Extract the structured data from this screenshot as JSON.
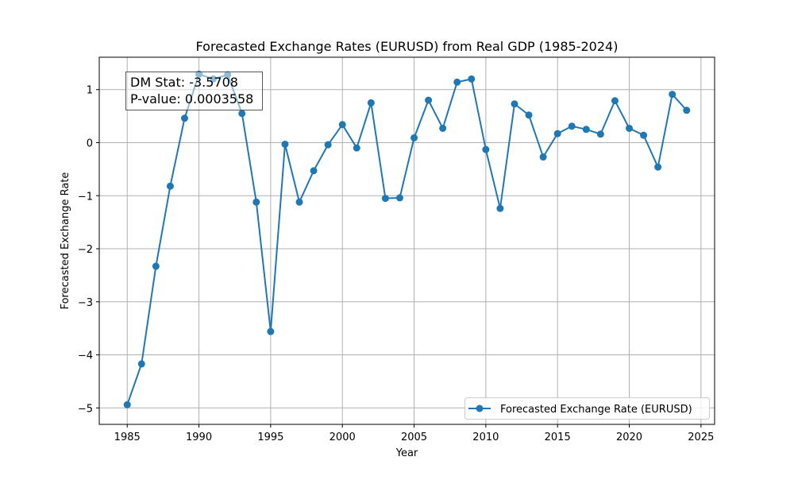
{
  "chart_data": {
    "type": "line",
    "title": "Forecasted Exchange Rates (EURUSD) from Real GDP (1985-2024)",
    "xlabel": "Year",
    "ylabel": "Forecasted Exchange Rate",
    "xlim": [
      1983.05,
      2025.95
    ],
    "ylim": [
      -5.31,
      1.61
    ],
    "xticks": [
      1985,
      1990,
      1995,
      2000,
      2005,
      2010,
      2015,
      2020,
      2025
    ],
    "yticks": [
      -5,
      -4,
      -3,
      -2,
      -1,
      0,
      1
    ],
    "ytick_labels": [
      "−5",
      "−4",
      "−3",
      "−2",
      "−1",
      "0",
      "1"
    ],
    "grid": true,
    "legend_position": "lower-right",
    "series": [
      {
        "name": "Forecasted Exchange Rate (EURUSD)",
        "color": "#1f77b4",
        "x": [
          1985,
          1986,
          1987,
          1988,
          1989,
          1990,
          1991,
          1992,
          1993,
          1994,
          1995,
          1996,
          1997,
          1998,
          1999,
          2000,
          2001,
          2002,
          2003,
          2004,
          2005,
          2006,
          2007,
          2008,
          2009,
          2010,
          2011,
          2012,
          2013,
          2014,
          2015,
          2016,
          2017,
          2018,
          2019,
          2020,
          2021,
          2022,
          2023,
          2024
        ],
        "y": [
          -4.94,
          -4.17,
          -2.33,
          -0.82,
          0.46,
          1.29,
          1.2,
          1.28,
          0.55,
          -1.12,
          -3.56,
          -0.03,
          -1.12,
          -0.53,
          -0.04,
          0.34,
          -0.1,
          0.75,
          -1.05,
          -1.04,
          0.09,
          0.8,
          0.27,
          1.14,
          1.2,
          -0.13,
          -1.24,
          0.73,
          0.52,
          -0.27,
          0.17,
          0.31,
          0.25,
          0.16,
          0.79,
          0.27,
          0.14,
          -0.46,
          0.91,
          0.61
        ]
      }
    ],
    "annotation": {
      "line1": "DM Stat: -3.5708",
      "line2": "P-value: 0.0003558"
    }
  }
}
